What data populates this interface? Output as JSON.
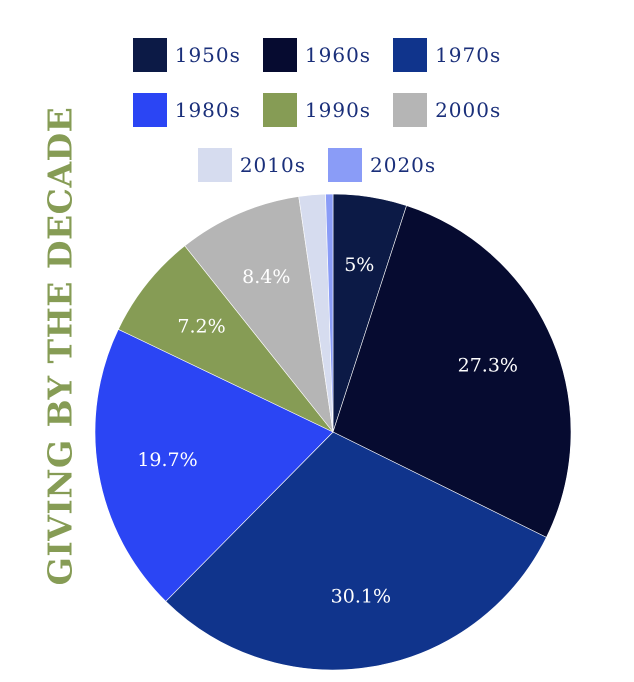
{
  "title": "GIVING BY THE DECADE",
  "chart_data": {
    "type": "pie",
    "title": "GIVING BY THE DECADE",
    "slices": [
      {
        "name": "1950s",
        "value": 5.0,
        "label": "5%",
        "color": "#0c1a46"
      },
      {
        "name": "1960s",
        "value": 27.3,
        "label": "27.3%",
        "color": "#060b30"
      },
      {
        "name": "1970s",
        "value": 30.1,
        "label": "30.1%",
        "color": "#10348c"
      },
      {
        "name": "1980s",
        "value": 19.7,
        "label": "19.7%",
        "color": "#2b45f4"
      },
      {
        "name": "1990s",
        "value": 7.2,
        "label": "7.2%",
        "color": "#869c55"
      },
      {
        "name": "2000s",
        "value": 8.4,
        "label": "8.4%",
        "color": "#b5b5b5"
      },
      {
        "name": "2010s",
        "value": 1.8,
        "label": "",
        "color": "#d6dcef"
      },
      {
        "name": "2020s",
        "value": 0.5,
        "label": "",
        "color": "#8a9cf7"
      }
    ],
    "legend_position": "top-center"
  }
}
